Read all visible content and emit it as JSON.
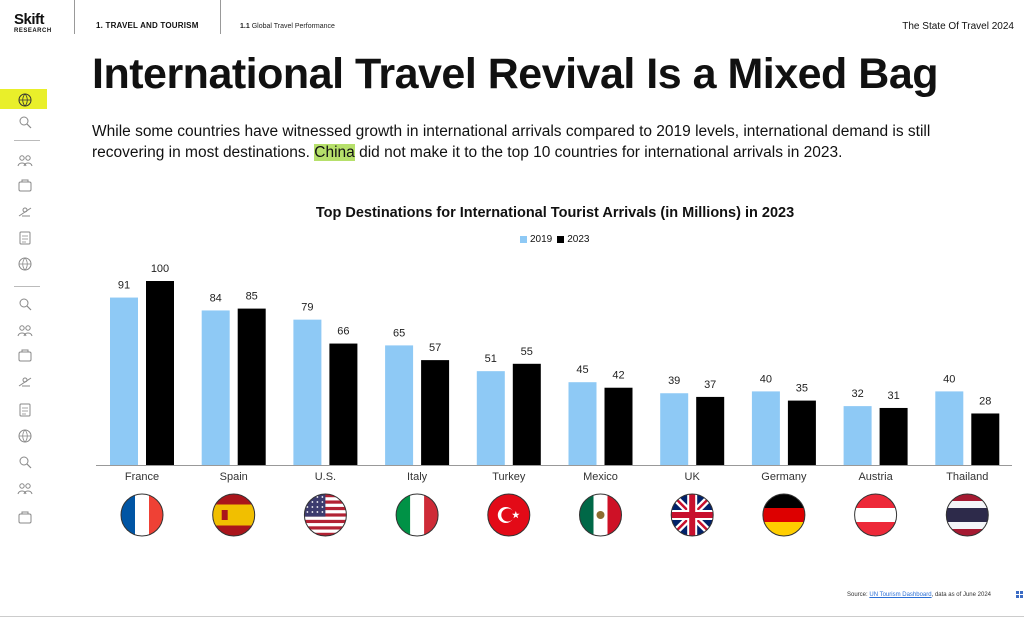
{
  "header": {
    "logo_line1": "Skift",
    "logo_line2": "RESEARCH",
    "section": "1. TRAVEL AND TOURISM",
    "subsection_num": "1.1",
    "subsection": "Global Travel Performance",
    "report_title": "The State Of Travel 2024"
  },
  "sidebar": {
    "icons": [
      "globe-icon",
      "search-icon",
      "people-icon",
      "handshake-icon",
      "plane-icon",
      "brain-icon",
      "piggy-bank-icon",
      "passport-icon",
      "bell-icon",
      "home-icon",
      "laptop-icon",
      "family-icon",
      "calendar-icon",
      "agent-icon",
      "cruise-ship-icon",
      "car-icon"
    ],
    "active_index": 0
  },
  "title": "International Travel Revival Is a Mixed Bag",
  "intro": {
    "before": "While some countries have witnessed growth in international arrivals compared to 2019 levels, international demand is still recovering in most destinations. ",
    "highlight": "China",
    "after": " did not make it to the top 10 countries for international arrivals in 2023."
  },
  "colors": {
    "s2019": "#8ec9f5",
    "s2023": "#000000",
    "highlight": "#b6e06b",
    "nav_active": "#e9ef2a"
  },
  "chart_data": {
    "type": "bar",
    "title": "Top Destinations for International Tourist Arrivals (in Millions) in 2023",
    "categories": [
      "France",
      "Spain",
      "U.S.",
      "Italy",
      "Turkey",
      "Mexico",
      "UK",
      "Germany",
      "Austria",
      "Thailand"
    ],
    "series": [
      {
        "name": "2019",
        "values": [
          91,
          84,
          79,
          65,
          51,
          45,
          39,
          40,
          32,
          40
        ]
      },
      {
        "name": "2023",
        "values": [
          100,
          85,
          66,
          57,
          55,
          42,
          37,
          35,
          31,
          28
        ]
      }
    ],
    "ylim": [
      0,
      100
    ],
    "grid": false,
    "legend": "top-center",
    "data_labels": true,
    "flags": [
      "france-flag",
      "spain-flag",
      "us-flag",
      "italy-flag",
      "turkey-flag",
      "mexico-flag",
      "uk-flag",
      "germany-flag",
      "austria-flag",
      "thailand-flag"
    ]
  },
  "source": {
    "prefix": "Source: ",
    "link_text": "UN Tourism Dashboard",
    "suffix": ", data as of June 2024"
  }
}
